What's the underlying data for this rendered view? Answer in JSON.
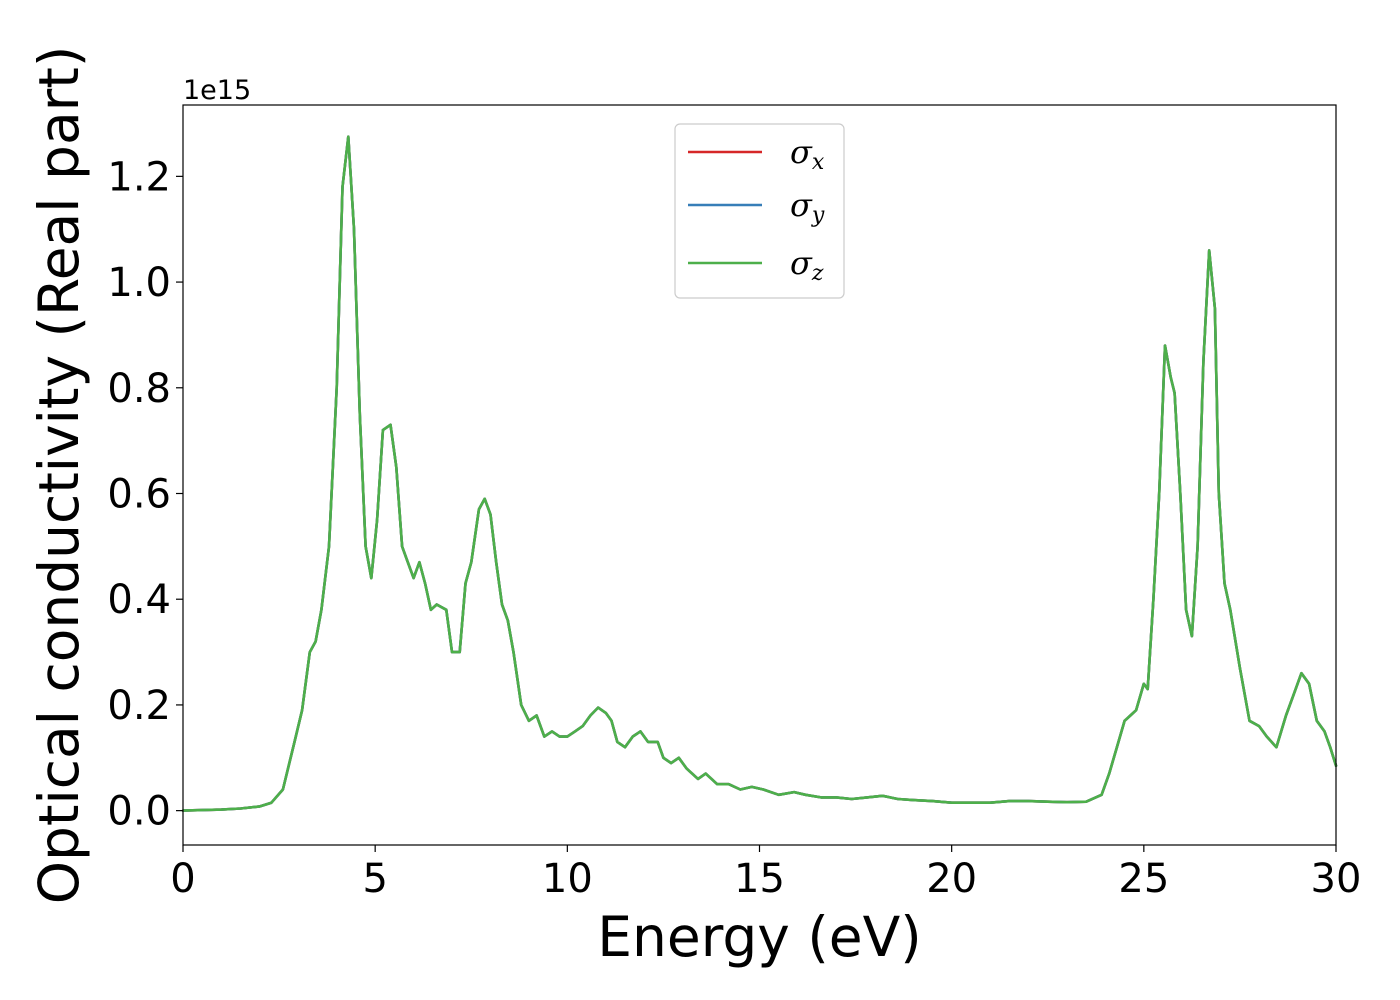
{
  "chart_data": {
    "type": "line",
    "title": "",
    "xlabel": "Energy (eV)",
    "ylabel": "Optical conductivity (Real part)",
    "y_offset_label": "1e15",
    "xlim": [
      0,
      30
    ],
    "ylim": [
      -0.065,
      1.335
    ],
    "xticks": [
      0,
      5,
      10,
      15,
      20,
      25,
      30
    ],
    "xtick_labels": [
      "0",
      "5",
      "10",
      "15",
      "20",
      "25",
      "30"
    ],
    "yticks": [
      0.0,
      0.2,
      0.4,
      0.6,
      0.8,
      1.0,
      1.2
    ],
    "ytick_labels": [
      "0.0",
      "0.2",
      "0.4",
      "0.6",
      "0.8",
      "1.0",
      "1.2"
    ],
    "grid": false,
    "legend_position": "upper center",
    "x": [
      0,
      1,
      1.5,
      2,
      2.3,
      2.6,
      2.9,
      3.1,
      3.3,
      3.45,
      3.6,
      3.8,
      4.0,
      4.15,
      4.3,
      4.45,
      4.6,
      4.75,
      4.9,
      5.05,
      5.2,
      5.4,
      5.55,
      5.7,
      5.85,
      6.0,
      6.15,
      6.3,
      6.45,
      6.6,
      6.85,
      7.0,
      7.2,
      7.35,
      7.5,
      7.7,
      7.85,
      8.0,
      8.15,
      8.3,
      8.45,
      8.6,
      8.8,
      9.0,
      9.2,
      9.4,
      9.6,
      9.8,
      10.0,
      10.2,
      10.4,
      10.6,
      10.8,
      11.0,
      11.15,
      11.3,
      11.5,
      11.7,
      11.9,
      12.1,
      12.35,
      12.5,
      12.7,
      12.9,
      13.1,
      13.4,
      13.6,
      13.9,
      14.2,
      14.5,
      14.8,
      15.1,
      15.5,
      15.9,
      16.2,
      16.6,
      17.0,
      17.4,
      17.8,
      18.2,
      18.6,
      19.0,
      19.5,
      20.0,
      20.5,
      21.0,
      21.5,
      22.0,
      22.5,
      23.0,
      23.5,
      23.9,
      24.1,
      24.3,
      24.5,
      24.65,
      24.8,
      25.0,
      25.1,
      25.25,
      25.4,
      25.55,
      25.7,
      25.8,
      25.95,
      26.1,
      26.25,
      26.4,
      26.55,
      26.7,
      26.85,
      26.95,
      27.1,
      27.25,
      27.5,
      27.75,
      28.0,
      28.2,
      28.45,
      28.7,
      28.9,
      29.1,
      29.3,
      29.5,
      29.7,
      29.85,
      30.0
    ],
    "series": [
      {
        "name": "σx",
        "color": "#d62728",
        "values": [
          0.0,
          0.002,
          0.004,
          0.008,
          0.015,
          0.04,
          0.13,
          0.19,
          0.3,
          0.32,
          0.38,
          0.5,
          0.8,
          1.18,
          1.275,
          1.1,
          0.75,
          0.5,
          0.44,
          0.55,
          0.72,
          0.73,
          0.65,
          0.5,
          0.47,
          0.44,
          0.47,
          0.43,
          0.38,
          0.39,
          0.38,
          0.3,
          0.3,
          0.43,
          0.47,
          0.57,
          0.59,
          0.56,
          0.47,
          0.39,
          0.36,
          0.3,
          0.2,
          0.17,
          0.18,
          0.14,
          0.15,
          0.14,
          0.14,
          0.15,
          0.16,
          0.18,
          0.195,
          0.185,
          0.17,
          0.13,
          0.12,
          0.14,
          0.15,
          0.13,
          0.13,
          0.1,
          0.09,
          0.1,
          0.08,
          0.06,
          0.07,
          0.05,
          0.05,
          0.04,
          0.045,
          0.04,
          0.03,
          0.035,
          0.03,
          0.025,
          0.025,
          0.022,
          0.025,
          0.028,
          0.022,
          0.02,
          0.018,
          0.015,
          0.015,
          0.015,
          0.018,
          0.018,
          0.017,
          0.016,
          0.017,
          0.03,
          0.07,
          0.12,
          0.17,
          0.18,
          0.19,
          0.24,
          0.23,
          0.4,
          0.6,
          0.88,
          0.82,
          0.79,
          0.6,
          0.38,
          0.33,
          0.5,
          0.85,
          1.06,
          0.95,
          0.6,
          0.43,
          0.38,
          0.27,
          0.17,
          0.16,
          0.14,
          0.12,
          0.18,
          0.22,
          0.26,
          0.24,
          0.17,
          0.15,
          0.12,
          0.085
        ]
      },
      {
        "name": "σy",
        "color": "#377eb8",
        "values": [
          0.0,
          0.002,
          0.004,
          0.008,
          0.015,
          0.04,
          0.13,
          0.19,
          0.3,
          0.32,
          0.38,
          0.5,
          0.8,
          1.18,
          1.275,
          1.1,
          0.75,
          0.5,
          0.44,
          0.55,
          0.72,
          0.73,
          0.65,
          0.5,
          0.47,
          0.44,
          0.47,
          0.43,
          0.38,
          0.39,
          0.38,
          0.3,
          0.3,
          0.43,
          0.47,
          0.57,
          0.59,
          0.56,
          0.47,
          0.39,
          0.36,
          0.3,
          0.2,
          0.17,
          0.18,
          0.14,
          0.15,
          0.14,
          0.14,
          0.15,
          0.16,
          0.18,
          0.195,
          0.185,
          0.17,
          0.13,
          0.12,
          0.14,
          0.15,
          0.13,
          0.13,
          0.1,
          0.09,
          0.1,
          0.08,
          0.06,
          0.07,
          0.05,
          0.05,
          0.04,
          0.045,
          0.04,
          0.03,
          0.035,
          0.03,
          0.025,
          0.025,
          0.022,
          0.025,
          0.028,
          0.022,
          0.02,
          0.018,
          0.015,
          0.015,
          0.015,
          0.018,
          0.018,
          0.017,
          0.016,
          0.017,
          0.03,
          0.07,
          0.12,
          0.17,
          0.18,
          0.19,
          0.24,
          0.23,
          0.4,
          0.6,
          0.88,
          0.82,
          0.79,
          0.6,
          0.38,
          0.33,
          0.5,
          0.85,
          1.06,
          0.95,
          0.6,
          0.43,
          0.38,
          0.27,
          0.17,
          0.16,
          0.14,
          0.12,
          0.18,
          0.22,
          0.26,
          0.24,
          0.17,
          0.15,
          0.12,
          0.085
        ]
      },
      {
        "name": "σz",
        "color": "#4daf4a",
        "values": [
          0.0,
          0.002,
          0.004,
          0.008,
          0.015,
          0.04,
          0.13,
          0.19,
          0.3,
          0.32,
          0.38,
          0.5,
          0.8,
          1.18,
          1.275,
          1.1,
          0.75,
          0.5,
          0.44,
          0.55,
          0.72,
          0.73,
          0.65,
          0.5,
          0.47,
          0.44,
          0.47,
          0.43,
          0.38,
          0.39,
          0.38,
          0.3,
          0.3,
          0.43,
          0.47,
          0.57,
          0.59,
          0.56,
          0.47,
          0.39,
          0.36,
          0.3,
          0.2,
          0.17,
          0.18,
          0.14,
          0.15,
          0.14,
          0.14,
          0.15,
          0.16,
          0.18,
          0.195,
          0.185,
          0.17,
          0.13,
          0.12,
          0.14,
          0.15,
          0.13,
          0.13,
          0.1,
          0.09,
          0.1,
          0.08,
          0.06,
          0.07,
          0.05,
          0.05,
          0.04,
          0.045,
          0.04,
          0.03,
          0.035,
          0.03,
          0.025,
          0.025,
          0.022,
          0.025,
          0.028,
          0.022,
          0.02,
          0.018,
          0.015,
          0.015,
          0.015,
          0.018,
          0.018,
          0.017,
          0.016,
          0.017,
          0.03,
          0.07,
          0.12,
          0.17,
          0.18,
          0.19,
          0.24,
          0.23,
          0.4,
          0.6,
          0.88,
          0.82,
          0.79,
          0.6,
          0.38,
          0.33,
          0.5,
          0.85,
          1.06,
          0.95,
          0.6,
          0.43,
          0.38,
          0.27,
          0.17,
          0.16,
          0.14,
          0.12,
          0.18,
          0.22,
          0.26,
          0.24,
          0.17,
          0.15,
          0.12,
          0.085
        ]
      }
    ],
    "legend": {
      "entries": [
        {
          "symbol": "σ",
          "subscript": "x",
          "color": "#d62728"
        },
        {
          "symbol": "σ",
          "subscript": "y",
          "color": "#377eb8"
        },
        {
          "symbol": "σ",
          "subscript": "z",
          "color": "#4daf4a"
        }
      ]
    }
  }
}
